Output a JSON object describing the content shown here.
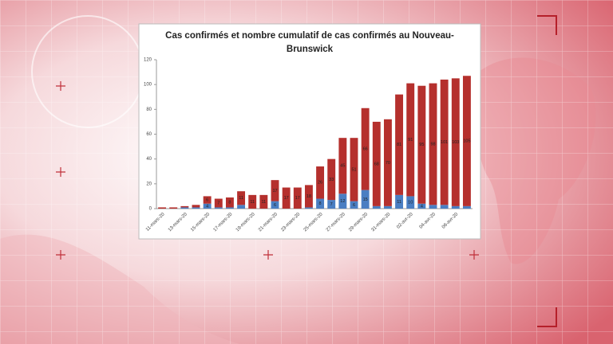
{
  "chart_data": {
    "type": "stacked-bar",
    "title": "Cas confirmés et nombre cumulatif de cas confirmés au Nouveau-Brunswick",
    "categories": [
      "11-mars-20",
      null,
      "13-mars-20",
      null,
      "15-mars-20",
      null,
      "17-mars-20",
      null,
      "19-mars-20",
      null,
      "21-mars-20",
      null,
      "23-mars-20",
      null,
      "25-mars-20",
      null,
      "27-mars-20",
      null,
      "29-mars-20",
      null,
      "31-mars-20",
      null,
      "02-avr-20",
      null,
      "04-avr-20",
      null,
      "06-avr-20",
      null
    ],
    "series": [
      {
        "color": "#4a7ec2",
        "values": [
          0,
          0,
          1,
          1,
          4,
          1,
          1,
          3,
          0,
          0,
          6,
          0,
          0,
          1,
          8,
          7,
          12,
          6,
          15,
          2,
          2,
          11,
          10,
          4,
          3,
          3,
          2,
          2
        ]
      },
      {
        "color": "#b5302d",
        "values": [
          1,
          1,
          1,
          2,
          6,
          7,
          8,
          11,
          11,
          11,
          17,
          17,
          17,
          18,
          26,
          33,
          45,
          51,
          66,
          68,
          70,
          81,
          91,
          95,
          98,
          101,
          103,
          105
        ]
      }
    ],
    "ylim": [
      0,
      120
    ],
    "yticks": [
      0,
      20,
      40,
      60,
      80,
      100,
      120
    ],
    "grid": false
  }
}
